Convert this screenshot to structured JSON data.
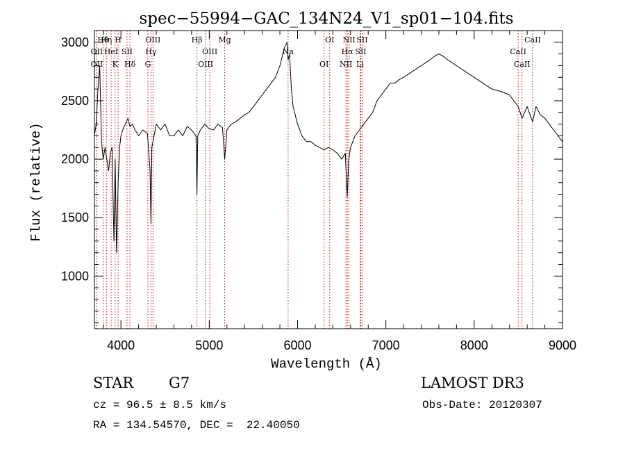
{
  "chart_data": {
    "type": "line",
    "title": "spec−55994−GAC_134N24_V1_sp01−104.fits",
    "xlabel": "Wavelength (Å)",
    "ylabel": "Flux (relative)",
    "xlim": [
      3700,
      9000
    ],
    "ylim": [
      550,
      3100
    ],
    "xticks": [
      4000,
      5000,
      6000,
      7000,
      8000,
      9000
    ],
    "yticks": [
      1000,
      1500,
      2000,
      2500,
      3000
    ],
    "xtick_labels": [
      "4000",
      "5000",
      "6000",
      "7000",
      "8000",
      "9000"
    ],
    "ytick_labels": [
      "1000",
      "1500",
      "2000",
      "2500",
      "3000"
    ],
    "grid": false,
    "series": [
      {
        "name": "flux",
        "x": [
          3700,
          3720,
          3740,
          3760,
          3780,
          3800,
          3820,
          3840,
          3860,
          3880,
          3900,
          3920,
          3935,
          3950,
          3968,
          3985,
          4000,
          4020,
          4050,
          4080,
          4101,
          4130,
          4160,
          4200,
          4250,
          4300,
          4330,
          4340,
          4350,
          4400,
          4450,
          4500,
          4550,
          4600,
          4650,
          4700,
          4750,
          4800,
          4850,
          4861,
          4870,
          4900,
          4950,
          5000,
          5050,
          5100,
          5150,
          5175,
          5200,
          5250,
          5300,
          5350,
          5400,
          5450,
          5500,
          5550,
          5600,
          5650,
          5700,
          5750,
          5800,
          5850,
          5880,
          5893,
          5910,
          5930,
          5950,
          6000,
          6050,
          6100,
          6150,
          6200,
          6250,
          6300,
          6350,
          6400,
          6450,
          6500,
          6540,
          6563,
          6580,
          6600,
          6650,
          6700,
          6750,
          6800,
          6850,
          6900,
          6950,
          7000,
          7050,
          7100,
          7150,
          7200,
          7300,
          7400,
          7500,
          7550,
          7600,
          7650,
          7700,
          7800,
          7900,
          8000,
          8100,
          8200,
          8300,
          8400,
          8498,
          8542,
          8600,
          8662,
          8700,
          8750,
          8800,
          8850,
          8900,
          8950,
          9000
        ],
        "y": [
          2200,
          2300,
          2600,
          2800,
          2150,
          2000,
          2100,
          2000,
          1900,
          2050,
          2100,
          1300,
          2000,
          1200,
          1800,
          2100,
          2200,
          2250,
          2300,
          2350,
          2280,
          2300,
          2250,
          2200,
          2250,
          2220,
          1900,
          1450,
          2100,
          2300,
          2250,
          2300,
          2200,
          2200,
          2250,
          2200,
          2280,
          2250,
          2200,
          1700,
          2200,
          2250,
          2300,
          2260,
          2250,
          2300,
          2270,
          2000,
          2250,
          2300,
          2320,
          2350,
          2380,
          2400,
          2450,
          2500,
          2550,
          2600,
          2650,
          2700,
          2800,
          2950,
          3000,
          2850,
          2900,
          2600,
          2450,
          2300,
          2200,
          2150,
          2150,
          2120,
          2100,
          2080,
          2100,
          2080,
          2050,
          2000,
          2050,
          1680,
          2000,
          2100,
          2200,
          2250,
          2300,
          2350,
          2400,
          2500,
          2550,
          2600,
          2650,
          2650,
          2680,
          2700,
          2750,
          2800,
          2850,
          2880,
          2900,
          2880,
          2850,
          2800,
          2750,
          2700,
          2650,
          2600,
          2580,
          2550,
          2450,
          2350,
          2450,
          2320,
          2450,
          2380,
          2350,
          2300,
          2250,
          2200,
          2150
        ]
      }
    ],
    "line_ids": [
      {
        "name": "Hθ",
        "wavelength": 3798
      },
      {
        "name": "OII",
        "wavelength": 3727
      },
      {
        "name": "OII",
        "wavelength": 3727
      },
      {
        "name": "Hη",
        "wavelength": 3835
      },
      {
        "name": "HeI",
        "wavelength": 3889
      },
      {
        "name": "K",
        "wavelength": 3934
      },
      {
        "name": "H",
        "wavelength": 3968
      },
      {
        "name": "SII",
        "wavelength": 4069
      },
      {
        "name": "Hδ",
        "wavelength": 4102
      },
      {
        "name": "OIII",
        "wavelength": 4363
      },
      {
        "name": "Hγ",
        "wavelength": 4341
      },
      {
        "name": "G",
        "wavelength": 4305
      },
      {
        "name": "Hβ",
        "wavelength": 4861
      },
      {
        "name": "OIII",
        "wavelength": 5007
      },
      {
        "name": "OIII",
        "wavelength": 4959
      },
      {
        "name": "Mg",
        "wavelength": 5175
      },
      {
        "name": "Na",
        "wavelength": 5893
      },
      {
        "name": "OI",
        "wavelength": 6300
      },
      {
        "name": "OI",
        "wavelength": 6364
      },
      {
        "name": "Hα",
        "wavelength": 6563
      },
      {
        "name": "NII",
        "wavelength": 6548
      },
      {
        "name": "NII",
        "wavelength": 6583
      },
      {
        "name": "SII",
        "wavelength": 6716
      },
      {
        "name": "Li",
        "wavelength": 6708
      },
      {
        "name": "SII",
        "wavelength": 6731
      },
      {
        "name": "CaII",
        "wavelength": 8498
      },
      {
        "name": "CaII",
        "wavelength": 8542
      },
      {
        "name": "CaII",
        "wavelength": 8662
      }
    ]
  },
  "info": {
    "class_label": "STAR",
    "subclass": "G7",
    "survey": "LAMOST DR3",
    "cz": "cz = 96.5 ± 8.5 km/s",
    "obs_date": "Obs-Date: 20120307",
    "coords": "RA = 134.54570, DEC =  22.40050"
  }
}
